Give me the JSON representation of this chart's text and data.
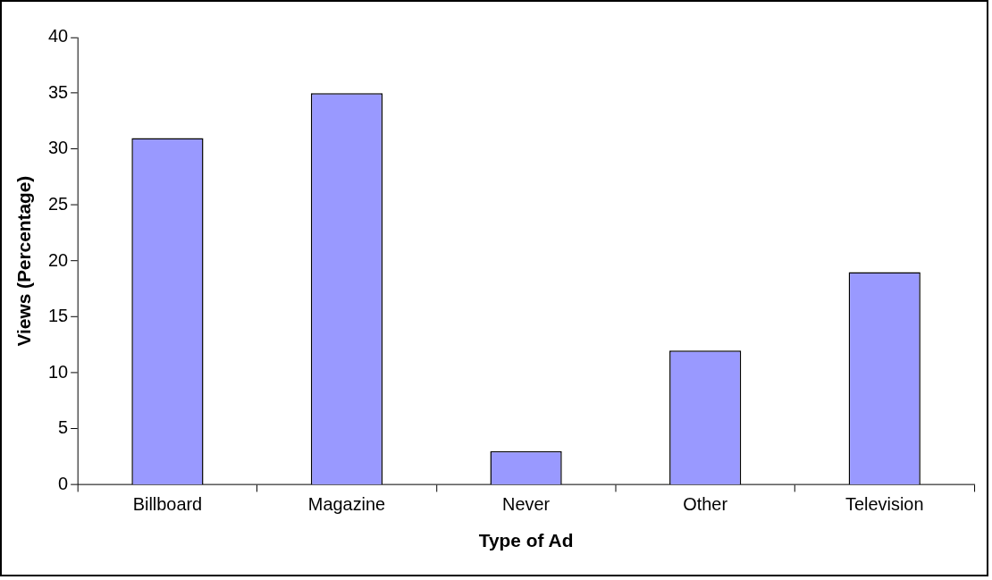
{
  "chart_data": {
    "type": "bar",
    "xlabel": "Type of Ad",
    "ylabel": "Views (Percentage)",
    "categories": [
      "Billboard",
      "Magazine",
      "Never",
      "Other",
      "Television"
    ],
    "values": [
      31,
      35,
      3,
      12,
      19
    ],
    "color": "#9999ff",
    "ylim": [
      0,
      40
    ],
    "yticks": [
      0,
      5,
      10,
      15,
      20,
      25,
      30,
      35,
      40
    ]
  }
}
